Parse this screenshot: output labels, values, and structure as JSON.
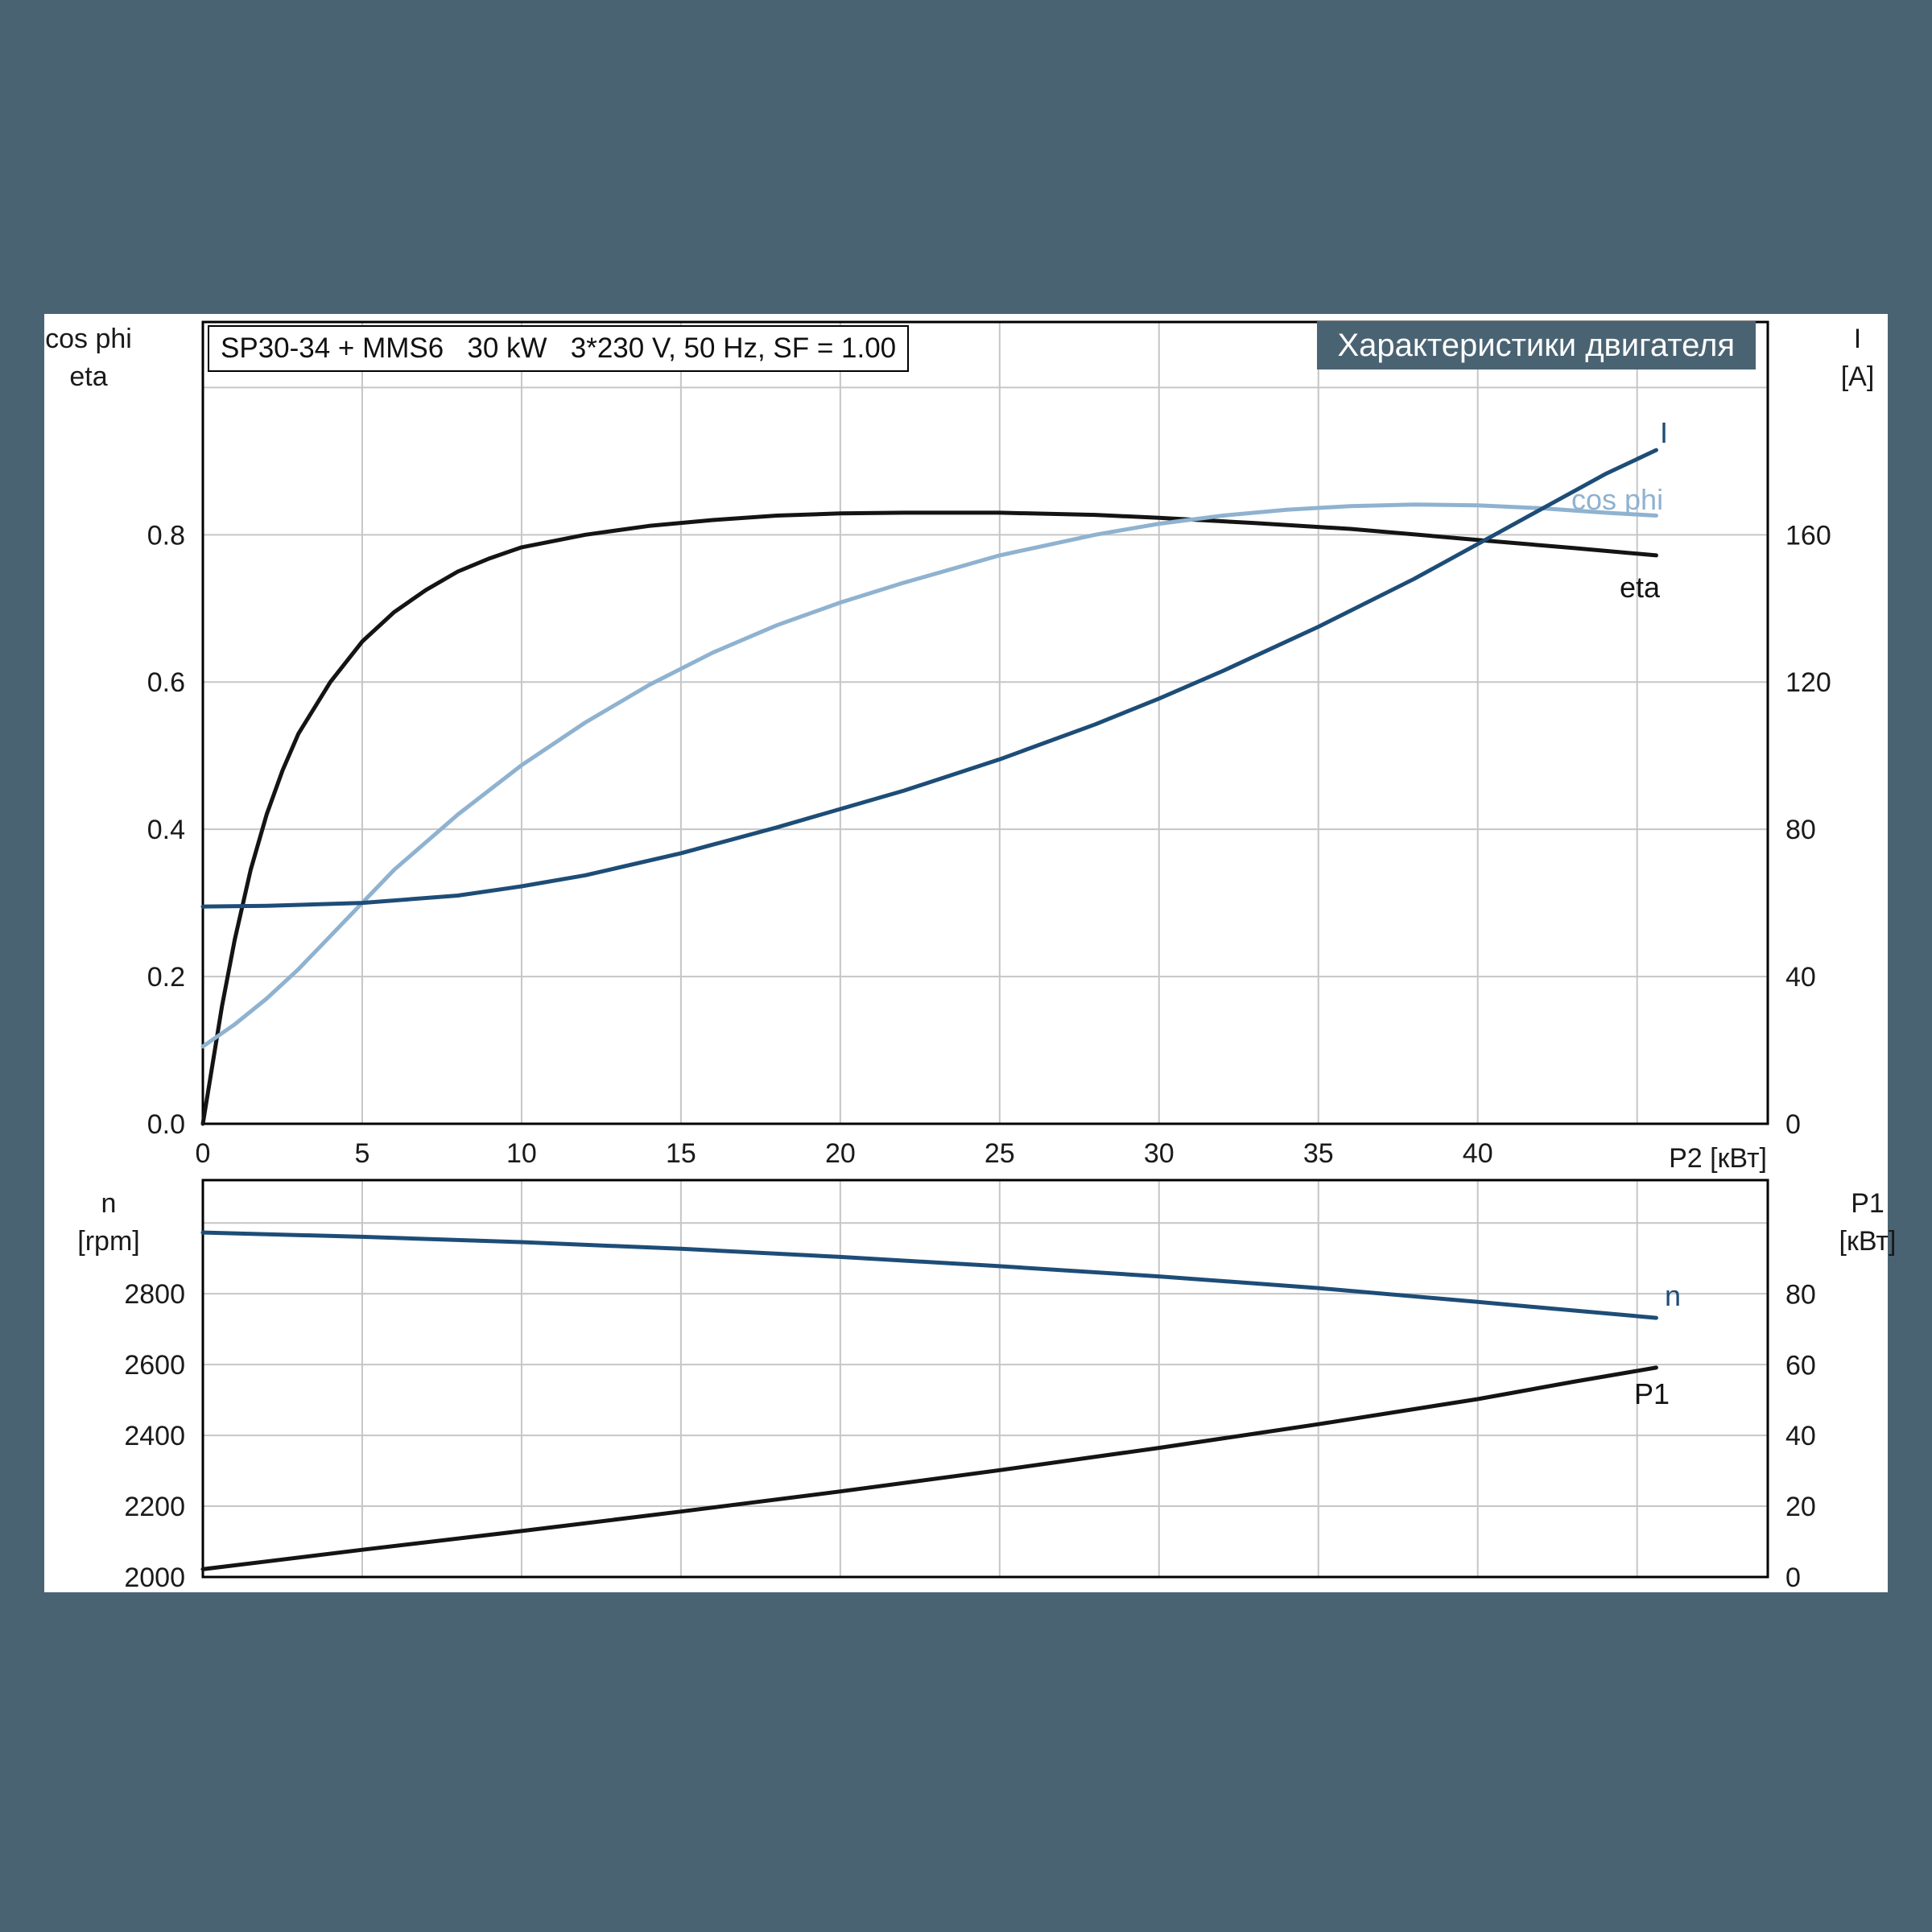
{
  "page": {
    "background": "#4a6372",
    "panel_color": "#ffffff",
    "grid_color": "#c6c6c6",
    "frame_color": "#000000",
    "accent_dark_blue": "#1d4d77",
    "accent_light_blue": "#8fb2d0"
  },
  "header": {
    "spec_box": "SP30-34 + MMS6   30 kW   3*230 V, 50 Hz, SF = 1.00",
    "banner": "Характеристики двигателя"
  },
  "top_chart_labels": {
    "left_axis_line1": "cos phi",
    "left_axis_line2": "eta",
    "right_axis_line1": "I",
    "right_axis_line2": "[A]",
    "x_axis": "P2 [кВт]",
    "curve_I": "I",
    "curve_cosphi": "cos phi",
    "curve_eta": "eta"
  },
  "bottom_chart_labels": {
    "left_axis_line1": "n",
    "left_axis_line2": "[rpm]",
    "right_axis_line1": "P1",
    "right_axis_line2": "[кВт]",
    "curve_n": "n",
    "curve_P1": "P1"
  },
  "chart_data": [
    {
      "type": "line",
      "title": "SP30-34 + MMS6   30 kW   3*230 V, 50 Hz, SF = 1.00",
      "banner_title": "Характеристики двигателя",
      "xlabel": "P2 [кВт]",
      "x": {
        "range": [
          0,
          49.1
        ],
        "ticks": [
          0,
          5,
          10,
          15,
          20,
          25,
          30,
          35,
          40,
          45
        ],
        "tick_labels": [
          "0",
          "5",
          "10",
          "15",
          "20",
          "25",
          "30",
          "35",
          "40",
          ""
        ]
      },
      "y_left": {
        "label": "cos phi / eta",
        "range": [
          0,
          1.089
        ],
        "ticks": [
          0,
          0.2,
          0.4,
          0.6,
          0.8,
          1.0
        ],
        "tick_labels": [
          "0.0",
          "0.2",
          "0.4",
          "0.6",
          "0.8",
          ""
        ]
      },
      "y_right": {
        "label": "I [A]",
        "range": [
          0,
          217.8
        ],
        "ticks": [
          0,
          40,
          80,
          120,
          160,
          200
        ],
        "tick_labels": [
          "0",
          "40",
          "80",
          "120",
          "160",
          ""
        ]
      },
      "grid": true,
      "legend_position": "inline-right",
      "series": [
        {
          "name": "eta",
          "axis": "left",
          "color": "#141414",
          "x": [
            0,
            0.3,
            0.6,
            1,
            1.5,
            2,
            2.5,
            3,
            4,
            5,
            6,
            7,
            8,
            9,
            10,
            12,
            14,
            16,
            18,
            20,
            22,
            25,
            28,
            30,
            33,
            36,
            40,
            43,
            45.6
          ],
          "values": [
            0,
            0.08,
            0.16,
            0.25,
            0.345,
            0.42,
            0.48,
            0.53,
            0.6,
            0.655,
            0.695,
            0.725,
            0.75,
            0.768,
            0.783,
            0.8,
            0.812,
            0.82,
            0.826,
            0.829,
            0.83,
            0.83,
            0.827,
            0.823,
            0.816,
            0.808,
            0.793,
            0.782,
            0.772
          ]
        },
        {
          "name": "cos phi",
          "axis": "left",
          "color": "#8fb2d0",
          "x": [
            0,
            1,
            2,
            3,
            4,
            5,
            6,
            8,
            10,
            12,
            14,
            16,
            18,
            20,
            22,
            25,
            28,
            30,
            32,
            34,
            36,
            38,
            40,
            42,
            44,
            45.6
          ],
          "values": [
            0.105,
            0.135,
            0.17,
            0.21,
            0.255,
            0.3,
            0.345,
            0.42,
            0.487,
            0.545,
            0.596,
            0.64,
            0.677,
            0.708,
            0.735,
            0.772,
            0.8,
            0.815,
            0.826,
            0.834,
            0.839,
            0.841,
            0.84,
            0.836,
            0.83,
            0.826
          ]
        },
        {
          "name": "I",
          "axis": "right",
          "color": "#1d4d77",
          "x": [
            0,
            2,
            5,
            8,
            10,
            12,
            15,
            18,
            20,
            22,
            25,
            28,
            30,
            32,
            35,
            38,
            40,
            42,
            44,
            45.6
          ],
          "values": [
            59,
            59.2,
            60,
            62,
            64.5,
            67.5,
            73.5,
            80.5,
            85.5,
            90.5,
            99,
            108.5,
            115.5,
            123,
            135,
            148,
            157.5,
            167,
            176.5,
            183
          ]
        }
      ]
    },
    {
      "type": "line",
      "xlabel": "",
      "x": {
        "range": [
          0,
          49.1
        ],
        "ticks": [
          0,
          5,
          10,
          15,
          20,
          25,
          30,
          35,
          40,
          45
        ],
        "tick_labels": [
          "",
          "",
          "",
          "",
          "",
          "",
          "",
          "",
          "",
          ""
        ]
      },
      "y_left": {
        "label": "n [rpm]",
        "range": [
          2000,
          3121
        ],
        "ticks": [
          2000,
          2200,
          2400,
          2600,
          2800,
          3000
        ],
        "tick_labels": [
          "2000",
          "2200",
          "2400",
          "2600",
          "2800",
          ""
        ]
      },
      "y_right": {
        "label": "P1 [кВт]",
        "range": [
          0,
          112.2
        ],
        "ticks": [
          0,
          20,
          40,
          60,
          80,
          100
        ],
        "tick_labels": [
          "0",
          "20",
          "40",
          "60",
          "80",
          ""
        ]
      },
      "grid": true,
      "legend_position": "inline-right",
      "series": [
        {
          "name": "n",
          "axis": "left",
          "color": "#1d4d77",
          "x": [
            0,
            5,
            10,
            15,
            20,
            25,
            30,
            35,
            40,
            45.6
          ],
          "values": [
            2973,
            2961,
            2946,
            2927,
            2904,
            2878,
            2849,
            2816,
            2777,
            2732
          ]
        },
        {
          "name": "P1",
          "axis": "right",
          "color": "#141414",
          "x": [
            0,
            2,
            5,
            10,
            15,
            20,
            25,
            30,
            35,
            40,
            43,
            45.6
          ],
          "values": [
            2.2,
            4.4,
            7.7,
            13.0,
            18.5,
            24.2,
            30.2,
            36.5,
            43.2,
            50.3,
            55.2,
            59.2
          ]
        }
      ]
    }
  ]
}
